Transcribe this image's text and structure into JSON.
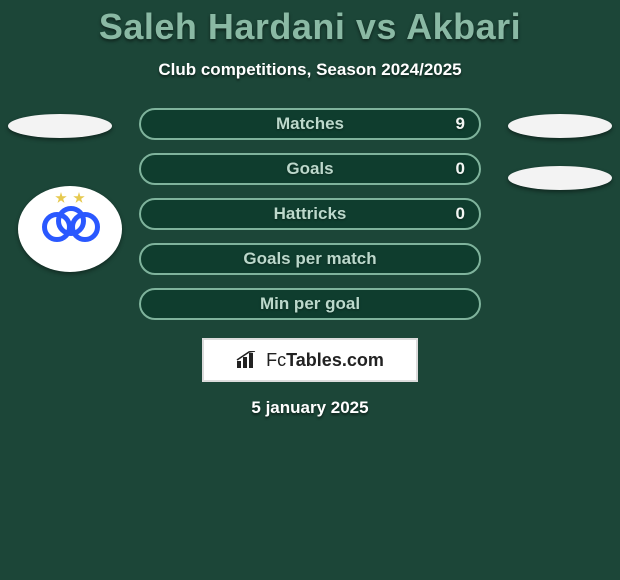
{
  "colors": {
    "page_bg": "#1c4638",
    "title": "#8ab9a4",
    "text_white": "#ffffff",
    "bar_fill": "#0f3d2e",
    "bar_border": "#7fb39c",
    "bar_label": "#bcd8cb",
    "bar_value": "#f2f6f3",
    "flag_bg": "#f3f3f3",
    "badge_bg": "#ffffff",
    "star": "#e6c94f",
    "ring": "#2a58ff",
    "footer_bg": "#ffffff",
    "footer_border": "#dcdcdc",
    "footer_text": "#222222"
  },
  "title": "Saleh Hardani vs Akbari",
  "subtitle": "Club competitions, Season 2024/2025",
  "bars": [
    {
      "label": "Matches",
      "value": "9"
    },
    {
      "label": "Goals",
      "value": "0"
    },
    {
      "label": "Hattricks",
      "value": "0"
    },
    {
      "label": "Goals per match",
      "value": ""
    },
    {
      "label": "Min per goal",
      "value": ""
    }
  ],
  "footer_brand": {
    "prefix": "Fc",
    "rest": "Tables.com"
  },
  "date": "5 january 2025"
}
